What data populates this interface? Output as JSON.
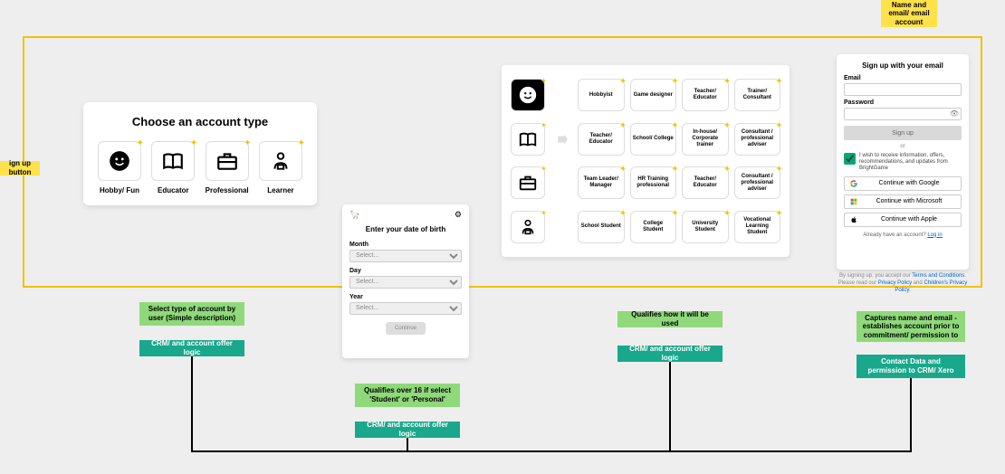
{
  "colors": {
    "yellow": "#ffe24a",
    "frame": "#f2c200",
    "bg": "#eeeeee",
    "green_light": "#8fd97a",
    "green_dark": "#19a88c"
  },
  "notes": {
    "signup": "ign up button",
    "name": "Name and email/ email account"
  },
  "panel1": {
    "title": "Choose an account type",
    "options": [
      {
        "label": "Hobby/ Fun",
        "icon": "smile"
      },
      {
        "label": "Educator",
        "icon": "book"
      },
      {
        "label": "Professional",
        "icon": "briefcase"
      },
      {
        "label": "Learner",
        "icon": "learner"
      }
    ]
  },
  "panel2": {
    "title": "Enter your date of birth",
    "fields": [
      {
        "label": "Month",
        "placeholder": "Select..."
      },
      {
        "label": "Day",
        "placeholder": "Select..."
      },
      {
        "label": "Year",
        "placeholder": "Select..."
      }
    ],
    "continue": "Continue"
  },
  "panel3": {
    "rows": [
      {
        "icon": "smile",
        "sel": true,
        "cells": [
          "Hobbyist",
          "Game designer",
          "Teacher/ Educator",
          "Trainer/ Consultant"
        ]
      },
      {
        "icon": "book",
        "arrow": true,
        "cells": [
          "Teacher/ Educator",
          "School/ College",
          "In-house/ Corporate trainer",
          "Consultant / professional adviser"
        ]
      },
      {
        "icon": "briefcase",
        "cells": [
          "Team Leader/ Manager",
          "HR Training professional",
          "Teacher/ Educator",
          "Consultant / professional adviser"
        ]
      },
      {
        "icon": "learner",
        "cells": [
          "School Student",
          "College Student",
          "University Student",
          "Vocational Learning Student"
        ]
      }
    ]
  },
  "panel4": {
    "title": "Sign up with your email",
    "email_label": "Email",
    "password_label": "Password",
    "signup_btn": "Sign up",
    "or": "or",
    "consent": "I wish to receive information, offers, recommendations, and updates from BrightGame",
    "sso": [
      {
        "label": "Continue with Google",
        "icon": "google"
      },
      {
        "label": "Continue with Microsoft",
        "icon": "ms"
      },
      {
        "label": "Continue with Apple",
        "icon": "apple"
      }
    ],
    "already": "Already have an account? ",
    "login": "Log in",
    "footer_a": "By signing up, you accept our ",
    "tac": "Terms and Conditions",
    "footer_b": ". Please read our ",
    "pp": "Privacy Policy",
    "footer_c": " and ",
    "cpp": "Children's Privacy Policy",
    "footer_d": "."
  },
  "annotations": {
    "a1a": "Select type of account by user (Simple description)",
    "a1b": "CRM/ and account offer logic",
    "a2a": "Qualifies over 16 if select 'Student' or 'Personal'",
    "a2b": "CRM/ and account offer logic",
    "a3a": "Qualifies how it will be used",
    "a3b": "CRM/ and account offer logic",
    "a4a": "Captures name and email - establishes account prior to commitment/ permission to",
    "a4b": "Contact Data and permission to CRM/ Xero"
  }
}
